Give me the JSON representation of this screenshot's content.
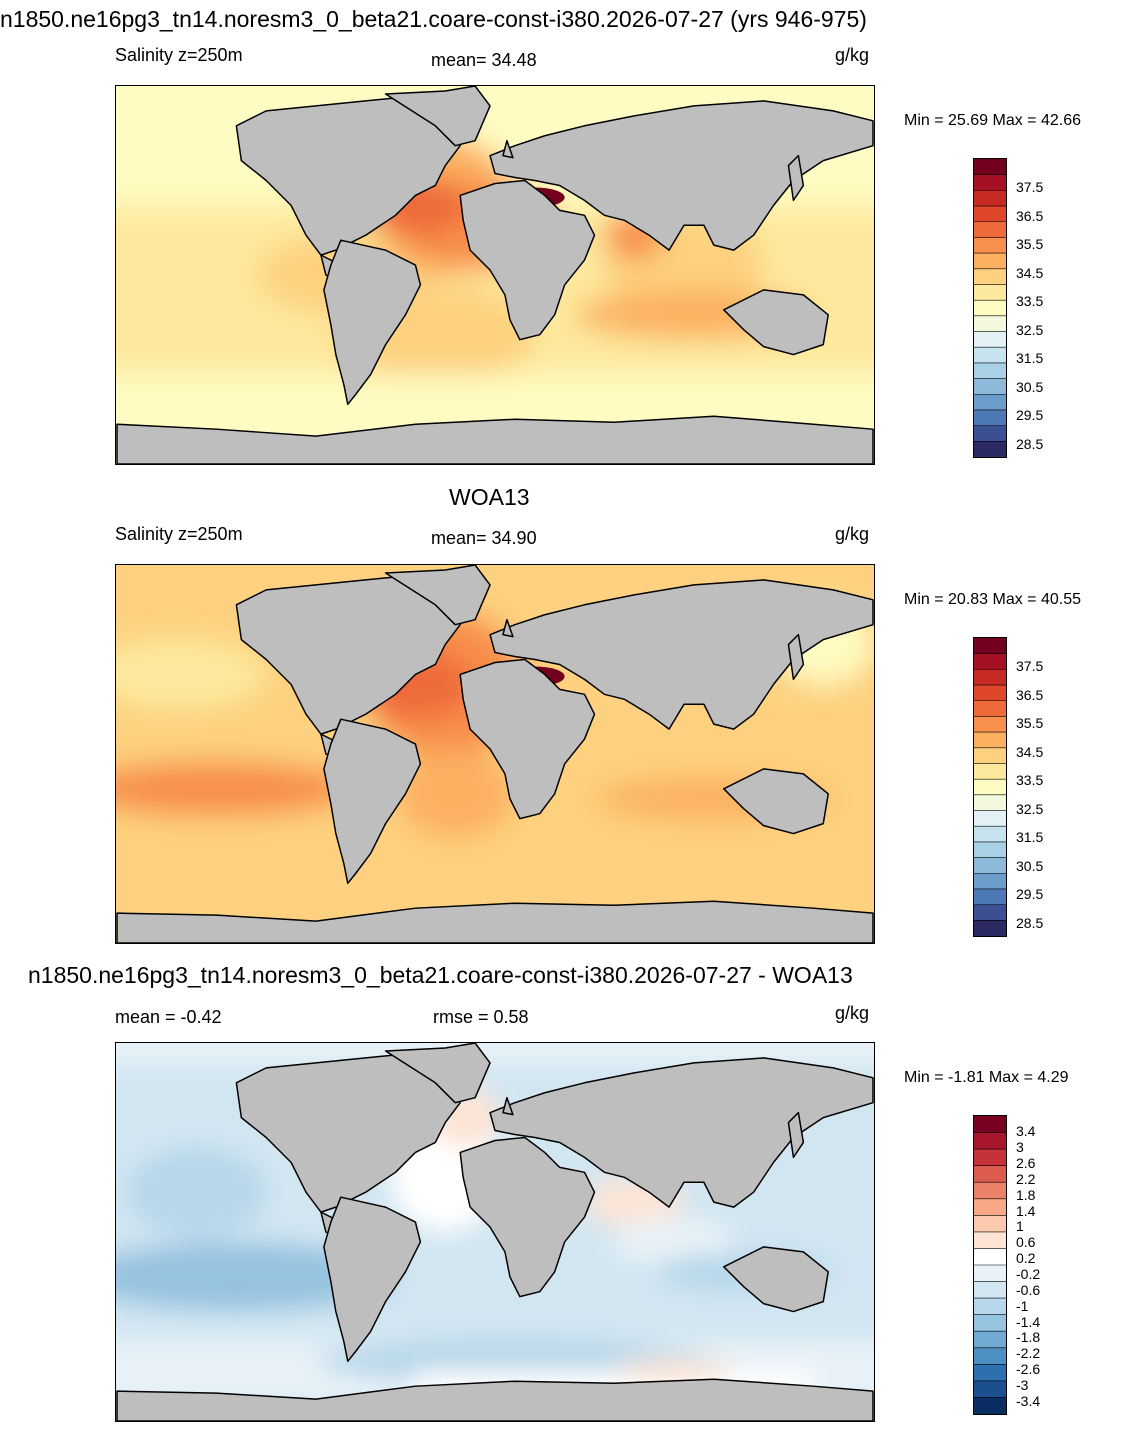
{
  "colors": {
    "land": "#bebebe",
    "coast": "#000000",
    "abs_scale": [
      "#2c2a63",
      "#3b4f93",
      "#4d79b6",
      "#6b9cca",
      "#8db9db",
      "#a8d1e7",
      "#c6e3ef",
      "#e4f2f5",
      "#f3f9dc",
      "#fefcc2",
      "#fde99e",
      "#fdd17f",
      "#fcb161",
      "#f88f4c",
      "#ee6a3a",
      "#e04629",
      "#c72a24",
      "#a51022",
      "#74001f"
    ],
    "diff_scale": [
      "#0a2d63",
      "#1c4f8d",
      "#2e6fb0",
      "#4c8fc3",
      "#71aad2",
      "#96c3e0",
      "#b7d7ea",
      "#d2e6f2",
      "#e8f2f8",
      "#ffffff",
      "#fde4d4",
      "#fbc9ad",
      "#f6a887",
      "#ec8169",
      "#db5b4e",
      "#c53238",
      "#a8152c",
      "#780020"
    ]
  },
  "panels": [
    {
      "id": "model",
      "title": "n1850.ne16pg3_tn14.noresm3_0_beta21.coare-const-i380.2026-07-27 (yrs 946-975)",
      "left_label": "Salinity z=250m",
      "center_label": "mean=  34.48",
      "units": "g/kg",
      "minmax": "Min =  25.69 Max =  42.66",
      "scale": "abs",
      "tick_labels": [
        "37.5",
        "36.5",
        "35.5",
        "34.5",
        "33.5",
        "32.5",
        "31.5",
        "30.5",
        "29.5",
        "28.5"
      ]
    },
    {
      "id": "obs",
      "title": "WOA13",
      "left_label": "Salinity z=250m",
      "center_label": "mean=  34.90",
      "units": "g/kg",
      "minmax": "Min =  20.83 Max =  40.55",
      "scale": "abs",
      "tick_labels": [
        "37.5",
        "36.5",
        "35.5",
        "34.5",
        "33.5",
        "32.5",
        "31.5",
        "30.5",
        "29.5",
        "28.5"
      ]
    },
    {
      "id": "diff",
      "title": "n1850.ne16pg3_tn14.noresm3_0_beta21.coare-const-i380.2026-07-27 - WOA13",
      "left_label": "mean =  -0.42",
      "center_label": "rmse =   0.58",
      "units": "g/kg",
      "minmax": "Min =  -1.81 Max =   4.29",
      "scale": "diff",
      "tick_labels": [
        "3.4",
        "3",
        "2.6",
        "2.2",
        "1.8",
        "1.4",
        "1",
        "0.6",
        "0.2",
        "-0.2",
        "-0.6",
        "-1",
        "-1.4",
        "-1.8",
        "-2.2",
        "-2.6",
        "-3",
        "-3.4"
      ]
    }
  ]
}
